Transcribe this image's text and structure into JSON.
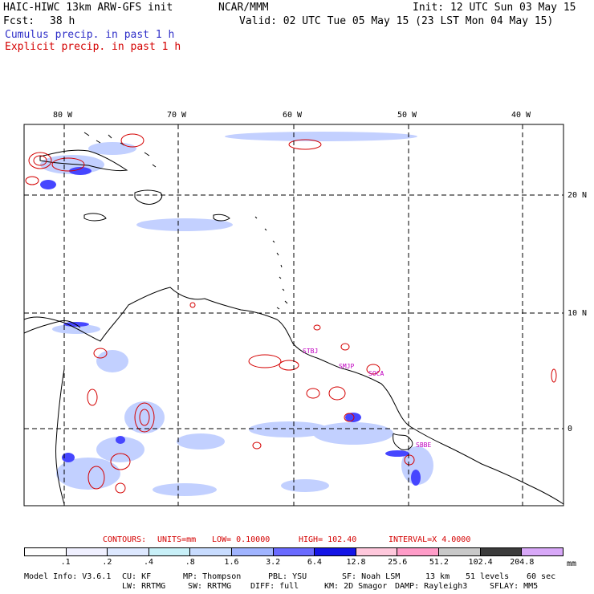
{
  "header": {
    "model": "HAIC-HIWC 13km ARW-GFS init",
    "center": "NCAR/MMM",
    "init": "Init: 12 UTC Sun 03 May 15",
    "fcst_label": "Fcst:",
    "fcst_value": "38 h",
    "valid": "Valid: 02 UTC Tue 05 May 15 (23 LST Mon 04 May 15)",
    "cumulus": "Cumulus precip. in past 1 h",
    "explicit": "Explicit precip. in past 1 h"
  },
  "colors": {
    "cumulus": "#3030c8",
    "explicit": "#d40000",
    "coast": "#000000",
    "site": "#c000c0"
  },
  "axes": {
    "lon_ticks": [
      "80 W",
      "70 W",
      "60 W",
      "50 W",
      "40 W"
    ],
    "lat_ticks": [
      "20 N",
      "10 N",
      "0"
    ]
  },
  "sites": [
    "STBJ",
    "SMJP",
    "SOCA",
    "SBBE"
  ],
  "contours": {
    "title": "CONTOURS:",
    "units": "UNITS=mm",
    "low": "LOW= 0.10000",
    "high": "HIGH= 102.40",
    "interval": "INTERVAL=X 4.0000"
  },
  "colorbar": {
    "unit": "mm",
    "labels": [
      ".1",
      ".2",
      ".4",
      ".8",
      "1.6",
      "3.2",
      "6.4",
      "12.8",
      "25.6",
      "51.2",
      "102.4",
      "204.8"
    ],
    "colors": [
      "#ffffff",
      "#f0f0ff",
      "#dde8ff",
      "#c8f0f8",
      "#c8dcff",
      "#a0b4ff",
      "#6a6aff",
      "#1414e6",
      "#ffc8dc",
      "#ff9cc8",
      "#c8c8c8",
      "#3c3c3c",
      "#d8a8f8"
    ]
  },
  "footer": {
    "line1": [
      "Model Info: V3.6.1",
      "CU: KF",
      "MP: Thompson",
      "PBL: YSU",
      "SF: Noah LSM",
      "13 km",
      "51 levels",
      "60 sec"
    ],
    "line2": [
      "LW: RRTMG",
      "SW: RRTMG",
      "DIFF: full",
      "KM: 2D Smagor",
      "DAMP: Rayleigh3",
      "SFLAY: MM5"
    ]
  }
}
